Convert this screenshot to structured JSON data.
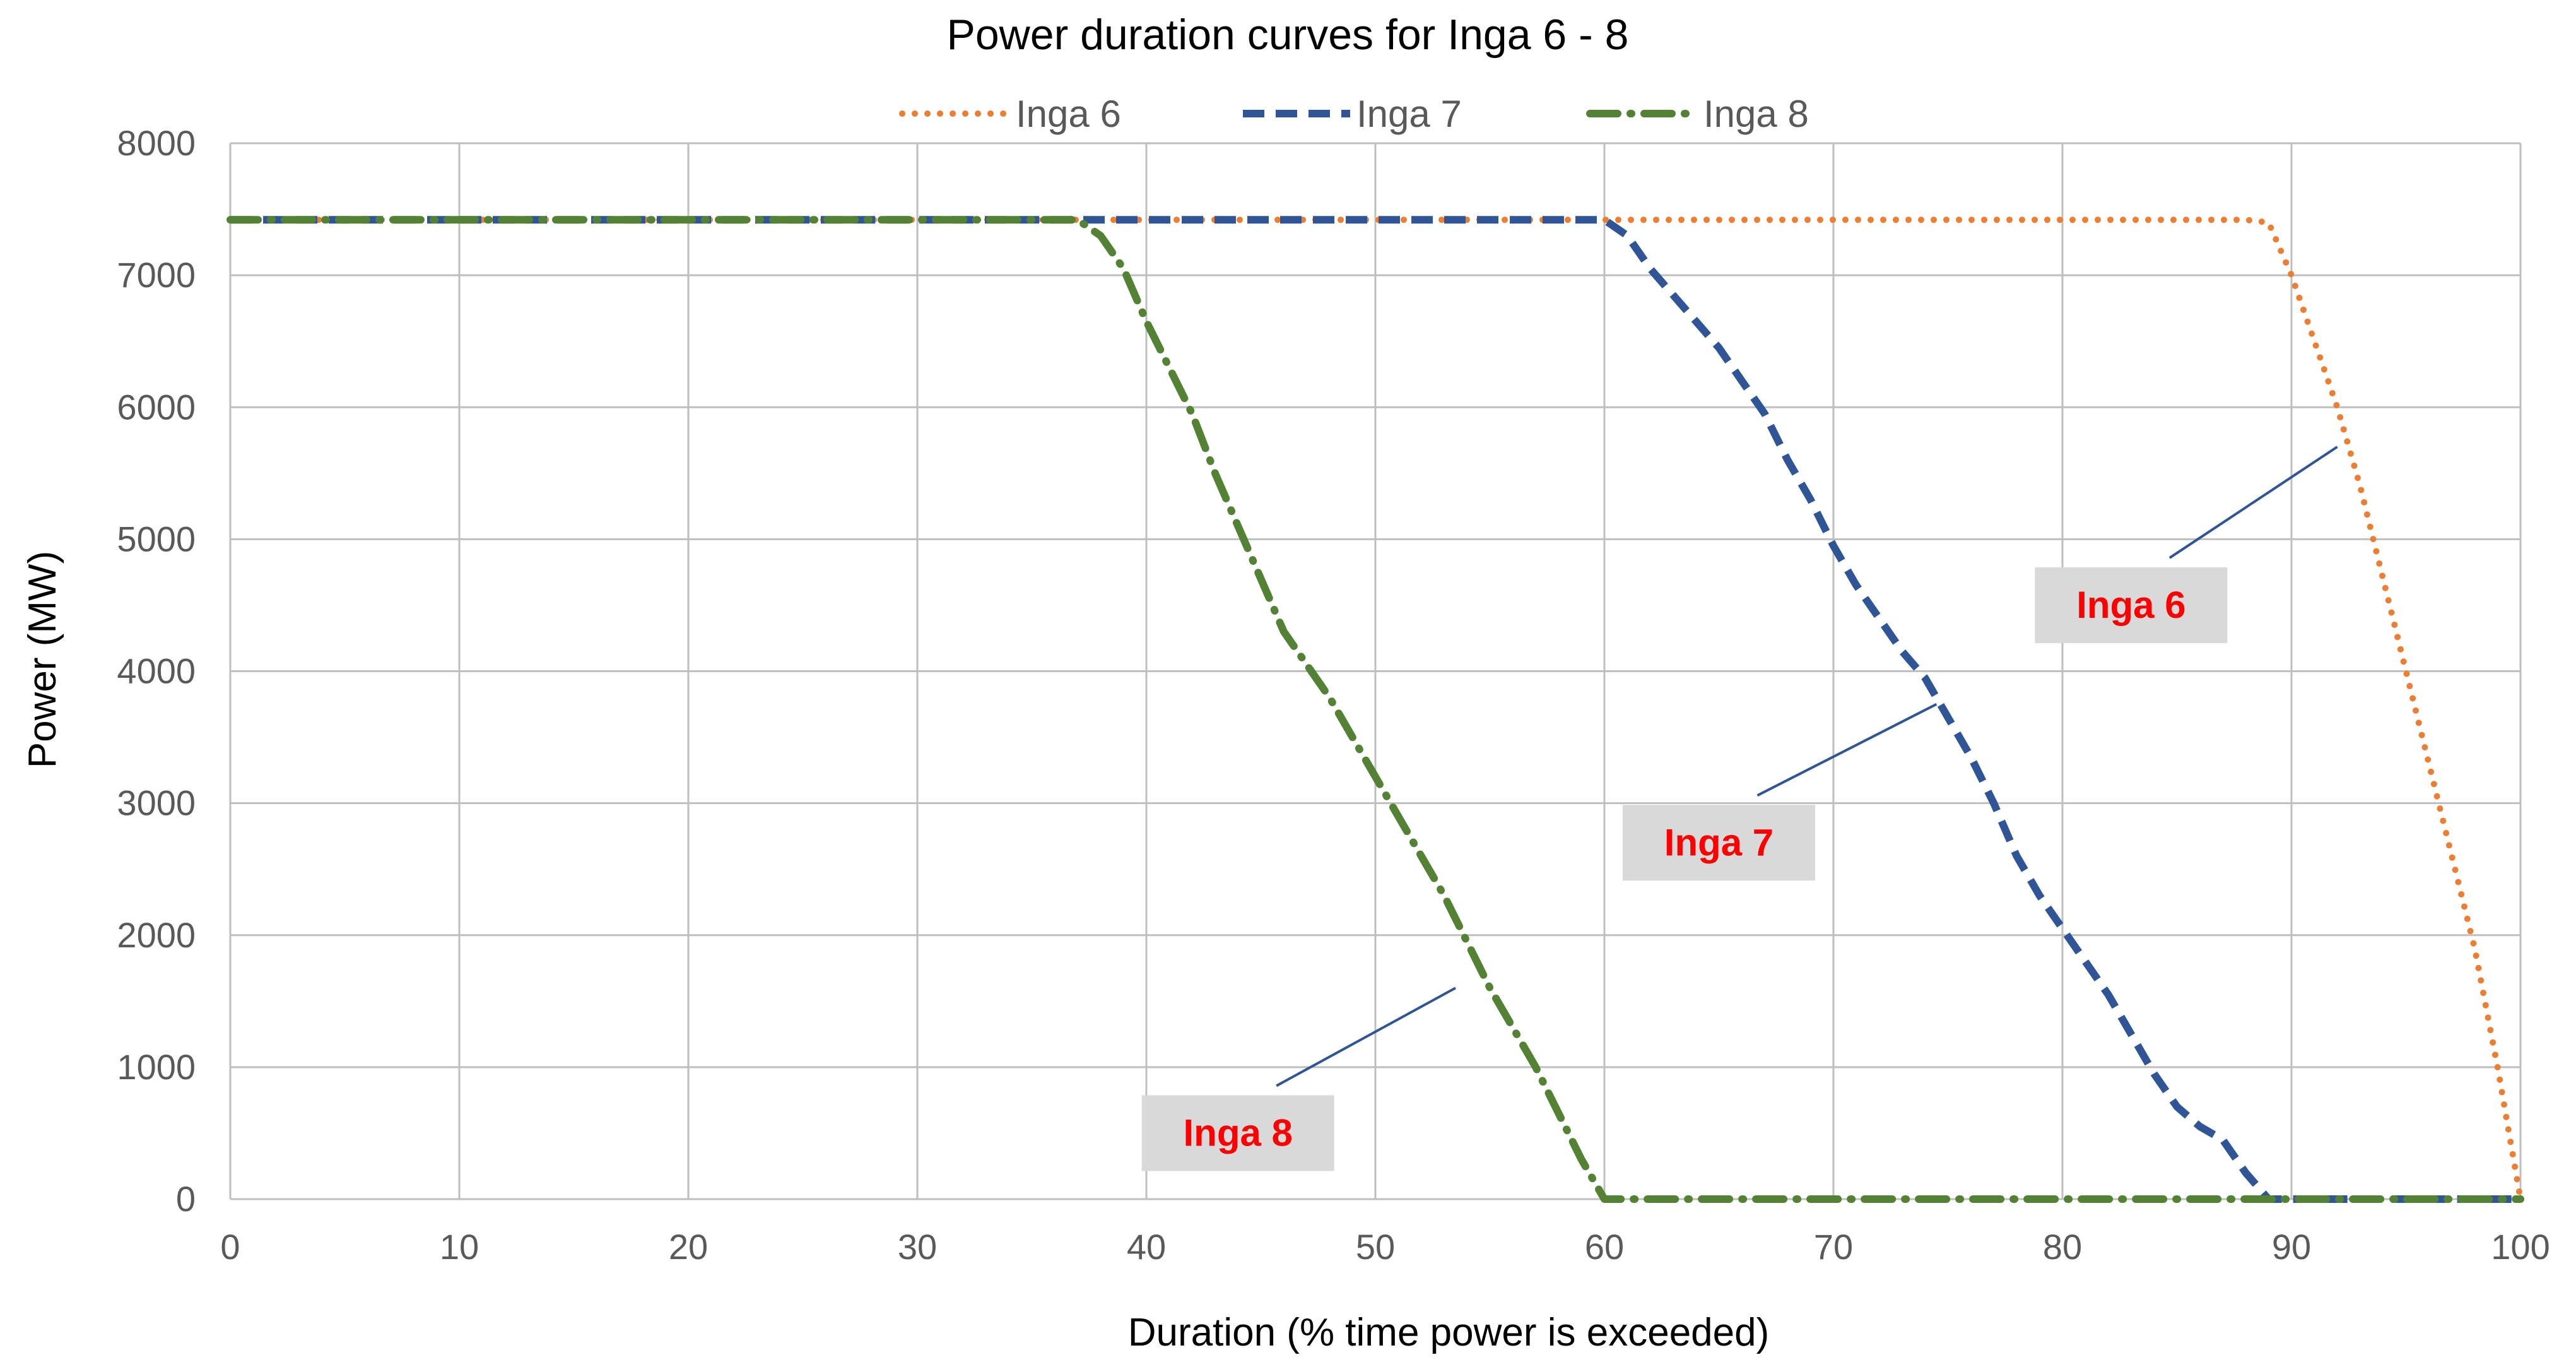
{
  "chart_data": {
    "type": "line",
    "title": "Power duration curves for Inga 6 - 8",
    "xlabel": "Duration (% time power is exceeded)",
    "ylabel": "Power (MW)",
    "xlim": [
      0,
      100
    ],
    "ylim": [
      0,
      8000
    ],
    "xticks": [
      0,
      10,
      20,
      30,
      40,
      50,
      60,
      70,
      80,
      90,
      100
    ],
    "yticks": [
      0,
      1000,
      2000,
      3000,
      4000,
      5000,
      6000,
      7000,
      8000
    ],
    "grid": true,
    "legend_position": "top",
    "colors": {
      "inga6": "#ED7D31",
      "inga7": "#2F5597",
      "inga8": "#548235",
      "grid": "#BFBFBF",
      "callout_bg": "#D9D9D9",
      "callout_text": "#FF0000",
      "leader": "#2F5597"
    },
    "series": [
      {
        "name": "Inga 6",
        "style": "dotted",
        "x": [
          0,
          60,
          88,
          89,
          90,
          91,
          92,
          93,
          94,
          95,
          96,
          97,
          98,
          99,
          100
        ],
        "y": [
          7420,
          7420,
          7420,
          7400,
          7000,
          6500,
          6000,
          5400,
          4700,
          4000,
          3300,
          2600,
          1900,
          1000,
          0
        ]
      },
      {
        "name": "Inga 7",
        "style": "dashed",
        "x": [
          0,
          60,
          61,
          62,
          63,
          64,
          65,
          66,
          67,
          68,
          69,
          70,
          71,
          72,
          73,
          74,
          75,
          76,
          77,
          78,
          79,
          80,
          81,
          82,
          83,
          84,
          85,
          86,
          87,
          88,
          89,
          100
        ],
        "y": [
          7420,
          7420,
          7300,
          7050,
          6850,
          6650,
          6450,
          6200,
          5950,
          5600,
          5300,
          4950,
          4650,
          4400,
          4150,
          3950,
          3650,
          3350,
          3000,
          2600,
          2300,
          2050,
          1800,
          1550,
          1250,
          950,
          700,
          550,
          450,
          200,
          0,
          0
        ]
      },
      {
        "name": "Inga 8",
        "style": "dash-dot",
        "x": [
          0,
          37,
          38,
          39,
          40,
          41,
          42,
          43,
          44,
          45,
          46,
          47,
          48,
          49,
          50,
          51,
          52,
          53,
          54,
          55,
          56,
          57,
          58,
          59,
          60,
          100
        ],
        "y": [
          7420,
          7420,
          7300,
          7050,
          6650,
          6300,
          5950,
          5500,
          5100,
          4700,
          4300,
          4050,
          3800,
          3500,
          3200,
          2900,
          2600,
          2300,
          1950,
          1600,
          1300,
          1000,
          650,
          300,
          0,
          0
        ]
      }
    ],
    "annotations": [
      {
        "text": "Inga 6",
        "target_x": 92,
        "target_y": 5700,
        "label_x": 83,
        "label_y": 4500
      },
      {
        "text": "Inga 7",
        "target_x": 74.5,
        "target_y": 3750,
        "label_x": 65,
        "label_y": 2700
      },
      {
        "text": "Inga 8",
        "target_x": 53.5,
        "target_y": 1600,
        "label_x": 44,
        "label_y": 500
      }
    ]
  }
}
